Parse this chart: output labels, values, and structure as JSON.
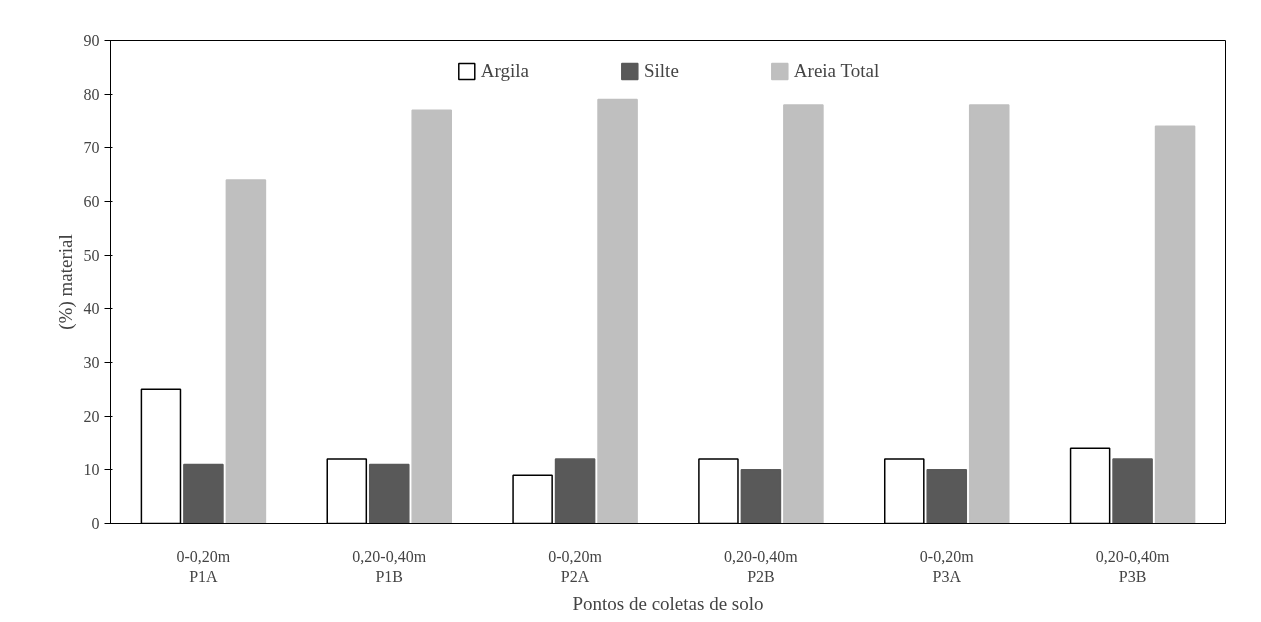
{
  "chart_data": {
    "type": "bar",
    "categories": [
      "0-0,20m\nP1A",
      "0,20-0,40m\nP1B",
      "0-0,20m\nP2A",
      "0,20-0,40m\nP2B",
      "0-0,20m\nP3A",
      "0,20-0,40m\nP3B"
    ],
    "series": [
      {
        "name": "Argila",
        "color": "#ffffff",
        "values": [
          25,
          12,
          9,
          12,
          12,
          14
        ]
      },
      {
        "name": "Silte",
        "color": "#595959",
        "values": [
          11,
          11,
          12,
          10,
          10,
          12
        ]
      },
      {
        "name": "Areia Total",
        "color": "#bfbfbf",
        "values": [
          64,
          77,
          79,
          78,
          78,
          74
        ]
      }
    ],
    "ylim": [
      0,
      90
    ],
    "yticks": [
      0,
      10,
      20,
      30,
      40,
      50,
      60,
      70,
      80,
      90
    ],
    "ylabel": "(%) material",
    "xlabel": "Pontos de coletas de solo",
    "legend": "top",
    "grid": false
  }
}
